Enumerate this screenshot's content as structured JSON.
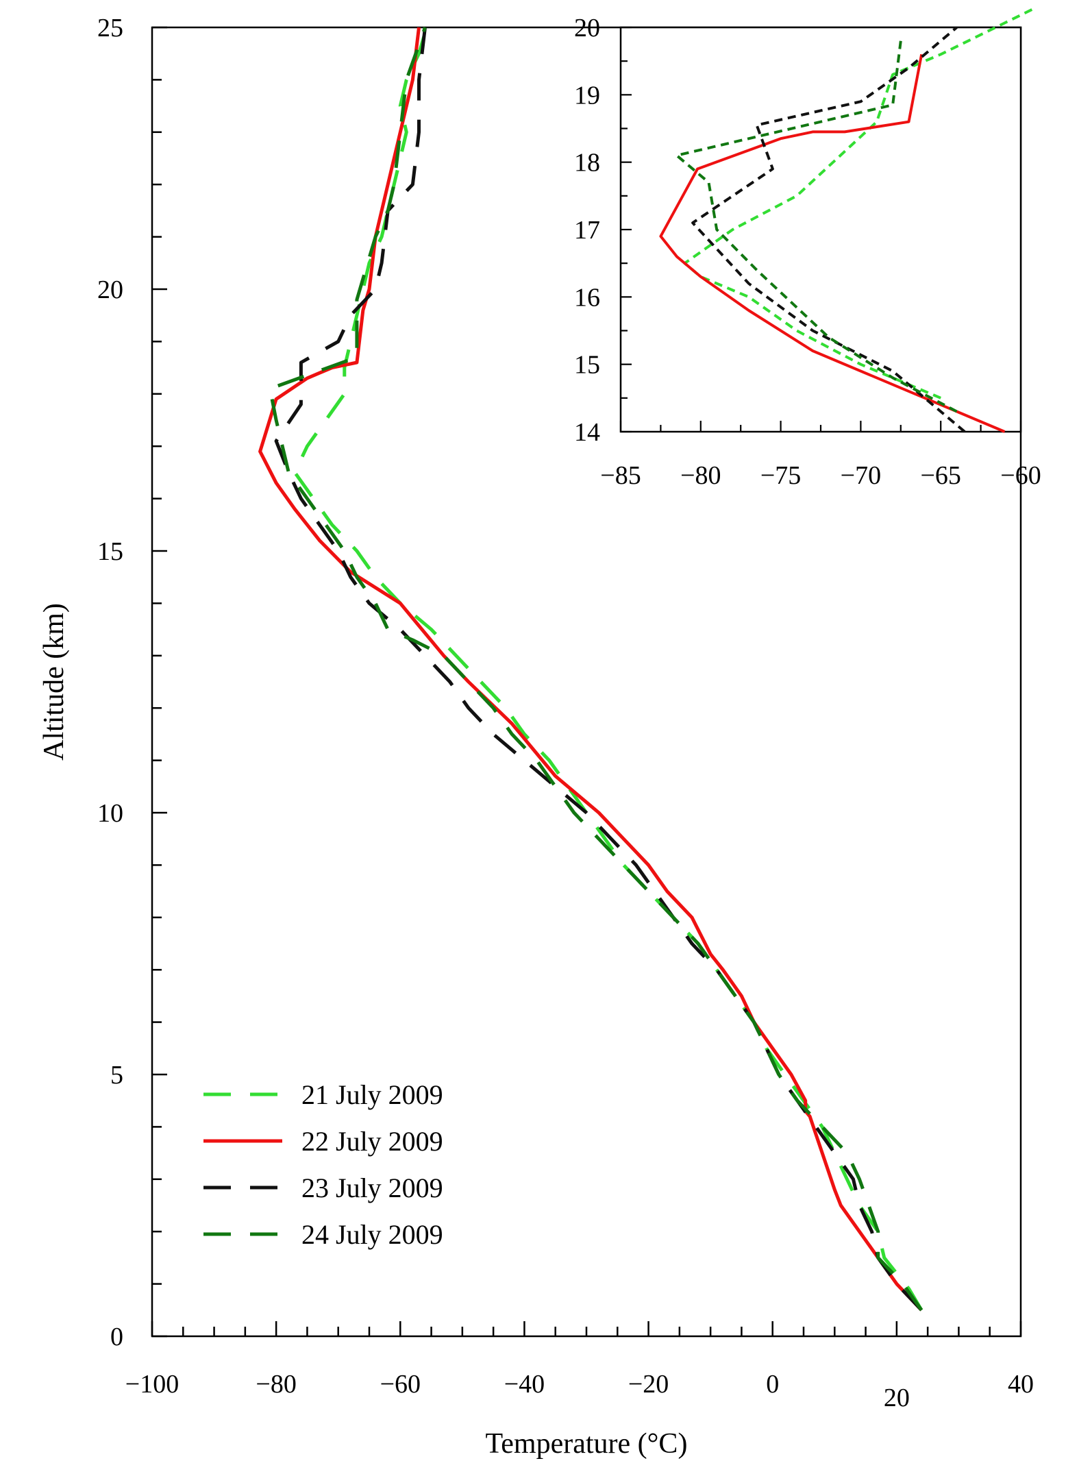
{
  "chart_data": [
    {
      "type": "line",
      "xlabel": "Temperature (°C)",
      "ylabel": "Altitude (km)",
      "xlim": [
        -100,
        40
      ],
      "ylim": [
        0,
        25
      ],
      "xticks": [
        "−100",
        "−80",
        "−60",
        "−40",
        "−20",
        "0",
        "20",
        "40"
      ],
      "yticks": [
        "0",
        "5",
        "10",
        "15",
        "20",
        "25"
      ],
      "legend_position": "bottom-left",
      "series": [
        {
          "name": "21 July 2009",
          "color": "#33dd33",
          "dash": "long-dash",
          "points": [
            [
              24,
              0.5
            ],
            [
              22,
              0.9
            ],
            [
              18,
              1.5
            ],
            [
              17,
              2.0
            ],
            [
              14,
              2.5
            ],
            [
              12,
              3.0
            ],
            [
              10,
              3.5
            ],
            [
              8,
              4.0
            ],
            [
              5,
              4.5
            ],
            [
              2,
              5.0
            ],
            [
              -1,
              5.5
            ],
            [
              -3,
              6.0
            ],
            [
              -6,
              6.5
            ],
            [
              -9,
              7.0
            ],
            [
              -12,
              7.5
            ],
            [
              -16,
              8.0
            ],
            [
              -20,
              8.5
            ],
            [
              -24,
              9.0
            ],
            [
              -27,
              9.5
            ],
            [
              -30,
              10.0
            ],
            [
              -33,
              10.5
            ],
            [
              -36,
              11.0
            ],
            [
              -40,
              11.5
            ],
            [
              -43,
              12.0
            ],
            [
              -47,
              12.5
            ],
            [
              -51,
              13.0
            ],
            [
              -55,
              13.5
            ],
            [
              -60,
              14.0
            ],
            [
              -64,
              14.5
            ],
            [
              -67,
              15.0
            ],
            [
              -71,
              15.5
            ],
            [
              -74,
              16.0
            ],
            [
              -77,
              16.5
            ],
            [
              -75,
              17.0
            ],
            [
              -72,
              17.5
            ],
            [
              -69,
              18.0
            ],
            [
              -69,
              18.5
            ],
            [
              -68,
              19.0
            ],
            [
              -67,
              19.5
            ],
            [
              -66,
              20.0
            ],
            [
              -65,
              20.5
            ],
            [
              -63,
              21.0
            ],
            [
              -62,
              21.5
            ],
            [
              -61,
              22.0
            ],
            [
              -60,
              22.5
            ],
            [
              -59,
              23.0
            ],
            [
              -60,
              23.5
            ],
            [
              -59,
              24.0
            ],
            [
              -57,
              24.5
            ],
            [
              -56,
              24.9
            ]
          ]
        },
        {
          "name": "22 July 2009",
          "color": "#ee1111",
          "dash": "solid",
          "points": [
            [
              24,
              0.5
            ],
            [
              20,
              1.0
            ],
            [
              17,
              1.5
            ],
            [
              14,
              2.0
            ],
            [
              11,
              2.5
            ],
            [
              10,
              2.8
            ],
            [
              8,
              3.5
            ],
            [
              6,
              4.2
            ],
            [
              5.3,
              4.3
            ],
            [
              5.3,
              4.5
            ],
            [
              3,
              5.0
            ],
            [
              0,
              5.5
            ],
            [
              -3,
              6.0
            ],
            [
              -5,
              6.5
            ],
            [
              -8,
              7.0
            ],
            [
              -10,
              7.3
            ],
            [
              -13,
              8.0
            ],
            [
              -17,
              8.5
            ],
            [
              -20,
              9.0
            ],
            [
              -24,
              9.5
            ],
            [
              -28,
              10.0
            ],
            [
              -30,
              10.2
            ],
            [
              -35,
              10.7
            ],
            [
              -42,
              11.7
            ],
            [
              -49,
              12.5
            ],
            [
              -53,
              13.0
            ],
            [
              -60,
              14.0
            ],
            [
              -68,
              14.6
            ],
            [
              -73,
              15.2
            ],
            [
              -77,
              15.8
            ],
            [
              -80,
              16.3
            ],
            [
              -82.6,
              16.9
            ],
            [
              -80,
              17.9
            ],
            [
              -75,
              18.3
            ],
            [
              -73,
              18.4
            ],
            [
              -71,
              18.5
            ],
            [
              -67,
              18.6
            ],
            [
              -66,
              19.6
            ],
            [
              -65,
              20.0
            ],
            [
              -64,
              21.0
            ],
            [
              -62,
              22.0
            ],
            [
              -60,
              23.0
            ],
            [
              -58,
              24.0
            ],
            [
              -57,
              25.0
            ]
          ]
        },
        {
          "name": "23 July 2009",
          "color": "#111111",
          "dash": "long-dash",
          "points": [
            [
              24,
              0.5
            ],
            [
              20,
              1.0
            ],
            [
              17,
              1.5
            ],
            [
              16,
              2.0
            ],
            [
              14,
              2.5
            ],
            [
              13,
              3.0
            ],
            [
              10,
              3.5
            ],
            [
              7,
              4.0
            ],
            [
              4,
              4.5
            ],
            [
              1,
              5.0
            ],
            [
              -1,
              5.5
            ],
            [
              -3,
              6.0
            ],
            [
              -6,
              6.5
            ],
            [
              -9,
              7.0
            ],
            [
              -13,
              7.5
            ],
            [
              -16,
              8.0
            ],
            [
              -19,
              8.5
            ],
            [
              -22,
              9.0
            ],
            [
              -26,
              9.5
            ],
            [
              -30,
              10.0
            ],
            [
              -35,
              10.5
            ],
            [
              -40,
              11.0
            ],
            [
              -45,
              11.5
            ],
            [
              -49,
              12.0
            ],
            [
              -52,
              12.5
            ],
            [
              -56,
              13.0
            ],
            [
              -60,
              13.5
            ],
            [
              -65,
              14.0
            ],
            [
              -68,
              14.5
            ],
            [
              -70,
              15.0
            ],
            [
              -73,
              15.5
            ],
            [
              -76,
              16.0
            ],
            [
              -78,
              16.5
            ],
            [
              -80,
              17.1
            ],
            [
              -76,
              17.8
            ],
            [
              -76,
              18.6
            ],
            [
              -70,
              19.0
            ],
            [
              -68,
              19.5
            ],
            [
              -64,
              20.0
            ],
            [
              -63,
              20.5
            ],
            [
              -62,
              21.5
            ],
            [
              -58,
              22.0
            ],
            [
              -57,
              23.0
            ],
            [
              -57,
              24.0
            ],
            [
              -56,
              25.0
            ]
          ]
        },
        {
          "name": "24 July 2009",
          "color": "#117711",
          "dash": "long-dash",
          "points": [
            [
              24,
              0.5
            ],
            [
              21,
              1.0
            ],
            [
              17,
              1.5
            ],
            [
              17,
              2.0
            ],
            [
              14,
              3.0
            ],
            [
              12,
              3.5
            ],
            [
              8,
              4.0
            ],
            [
              4,
              4.5
            ],
            [
              1,
              5.0
            ],
            [
              -1,
              5.5
            ],
            [
              -3,
              6.0
            ],
            [
              -6,
              6.5
            ],
            [
              -9,
              7.0
            ],
            [
              -12,
              7.5
            ],
            [
              -16,
              8.0
            ],
            [
              -20,
              8.5
            ],
            [
              -24,
              9.0
            ],
            [
              -28,
              9.5
            ],
            [
              -32,
              10.0
            ],
            [
              -35,
              10.5
            ],
            [
              -38,
              11.0
            ],
            [
              -42,
              11.5
            ],
            [
              -45,
              12.0
            ],
            [
              -49,
              12.5
            ],
            [
              -53,
              13.0
            ],
            [
              -58,
              13.3
            ],
            [
              -62,
              13.5
            ],
            [
              -64,
              14.0
            ],
            [
              -67,
              14.5
            ],
            [
              -69,
              15.0
            ],
            [
              -72,
              15.5
            ],
            [
              -75,
              16.0
            ],
            [
              -78,
              16.5
            ],
            [
              -79,
              17.0
            ],
            [
              -80,
              17.5
            ],
            [
              -81,
              18.1
            ],
            [
              -67,
              18.7
            ],
            [
              -67,
              19.8
            ],
            [
              -66,
              20.2
            ],
            [
              -64,
              21.0
            ],
            [
              -62,
              21.5
            ],
            [
              -61,
              22.0
            ],
            [
              -60,
              23.0
            ],
            [
              -59,
              24.0
            ],
            [
              -56,
              25.0
            ]
          ]
        }
      ]
    },
    {
      "type": "line",
      "xlim": [
        -85,
        -60
      ],
      "ylim": [
        14,
        20
      ],
      "xticks": [
        "−85",
        "−80",
        "−75",
        "−70",
        "−65",
        "−60"
      ],
      "yticks": [
        "14",
        "15",
        "16",
        "17",
        "18",
        "19",
        "20"
      ],
      "series": [
        {
          "color": "#33dd33",
          "dash": "short-dash",
          "points": [
            [
              -65,
              14.5
            ],
            [
              -70,
              15.0
            ],
            [
              -74,
              15.5
            ],
            [
              -77,
              16.0
            ],
            [
              -80,
              16.3
            ],
            [
              -81,
              16.5
            ],
            [
              -78,
              17.0
            ],
            [
              -74,
              17.5
            ],
            [
              -69,
              18.6
            ],
            [
              -68,
              19.3
            ],
            [
              -65,
              19.6
            ],
            [
              -59,
              20.3
            ]
          ]
        },
        {
          "color": "#ee1111",
          "dash": "solid",
          "points": [
            [
              -61,
              14.0
            ],
            [
              -68,
              14.7
            ],
            [
              -73,
              15.2
            ],
            [
              -77,
              15.8
            ],
            [
              -80,
              16.3
            ],
            [
              -81.5,
              16.6
            ],
            [
              -82.5,
              16.9
            ],
            [
              -80.2,
              17.9
            ],
            [
              -75,
              18.35
            ],
            [
              -73,
              18.45
            ],
            [
              -71,
              18.45
            ],
            [
              -67,
              18.6
            ],
            [
              -66.2,
              19.6
            ]
          ]
        },
        {
          "color": "#111111",
          "dash": "short-dash",
          "points": [
            [
              -63.5,
              14.0
            ],
            [
              -68,
              14.9
            ],
            [
              -73,
              15.5
            ],
            [
              -77,
              16.2
            ],
            [
              -80.5,
              17.1
            ],
            [
              -75.5,
              17.9
            ],
            [
              -76.5,
              18.55
            ],
            [
              -70,
              18.9
            ],
            [
              -67,
              19.4
            ],
            [
              -64,
              20.0
            ]
          ]
        },
        {
          "color": "#117711",
          "dash": "short-dash",
          "points": [
            [
              -64,
              14.3
            ],
            [
              -68,
              14.8
            ],
            [
              -72,
              15.4
            ],
            [
              -76.5,
              16.4
            ],
            [
              -79,
              17.0
            ],
            [
              -79.5,
              17.7
            ],
            [
              -81.5,
              18.1
            ],
            [
              -68,
              18.85
            ],
            [
              -67.5,
              19.8
            ]
          ]
        }
      ]
    }
  ],
  "legend": {
    "items": [
      {
        "label": "21 July 2009"
      },
      {
        "label": "22 July 2009"
      },
      {
        "label": "23 July 2009"
      },
      {
        "label": "24 July 2009"
      }
    ]
  }
}
